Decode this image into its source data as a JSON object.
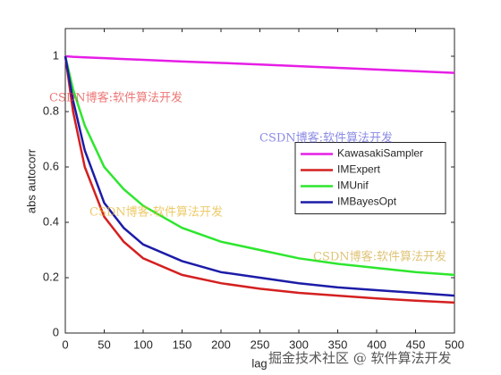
{
  "chart_data": {
    "type": "line",
    "xlabel": "lag",
    "ylabel": "abs autocorr",
    "x": [
      0,
      10,
      25,
      50,
      75,
      100,
      150,
      200,
      250,
      300,
      350,
      400,
      450,
      500
    ],
    "series": [
      {
        "name": "KawasakiSampler",
        "color": "#e61ee6",
        "values": [
          1,
          0.998,
          0.996,
          0.993,
          0.99,
          0.987,
          0.981,
          0.976,
          0.97,
          0.964,
          0.958,
          0.952,
          0.946,
          0.94
        ]
      },
      {
        "name": "IMExpert",
        "color": "#d42020",
        "values": [
          1,
          0.8,
          0.6,
          0.42,
          0.33,
          0.27,
          0.21,
          0.18,
          0.16,
          0.145,
          0.135,
          0.125,
          0.117,
          0.11
        ]
      },
      {
        "name": "IMUnif",
        "color": "#2ee62e",
        "values": [
          1,
          0.88,
          0.75,
          0.6,
          0.52,
          0.46,
          0.38,
          0.33,
          0.3,
          0.27,
          0.25,
          0.235,
          0.22,
          0.21
        ]
      },
      {
        "name": "IMBayesOpt",
        "color": "#1c1ca8",
        "values": [
          1,
          0.84,
          0.66,
          0.47,
          0.38,
          0.32,
          0.26,
          0.22,
          0.2,
          0.18,
          0.165,
          0.155,
          0.145,
          0.135
        ]
      }
    ],
    "xlim": [
      0,
      500
    ],
    "xticks": [
      0,
      50,
      100,
      150,
      200,
      250,
      300,
      350,
      400,
      450,
      500
    ],
    "ylim": [
      0,
      1.1
    ],
    "yticks": [
      0,
      0.2,
      0.4,
      0.6,
      0.8,
      1
    ],
    "legend": "east",
    "watermarks": [
      "CSDN博客:软件算法开发",
      "CSDN博客:软件算法开发",
      "CSDN博客:软件算法开发",
      "CSDN博客:软件算法开发",
      "掘金技术社区 @ 软件算法开发"
    ]
  }
}
